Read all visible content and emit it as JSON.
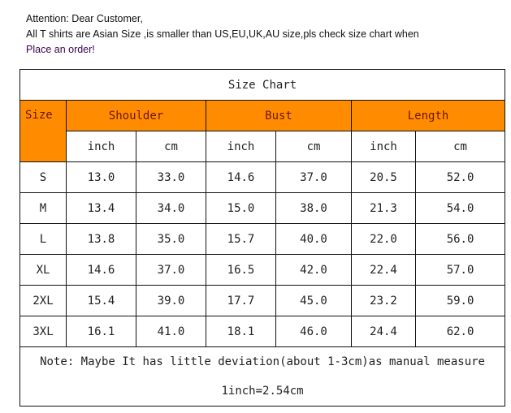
{
  "notice": {
    "line1": "Attention: Dear Customer,",
    "line2": "All T shirts are Asian Size ,is smaller than US,EU,UK,AU size,pls check size chart when",
    "line3": "Place an order!"
  },
  "table": {
    "title": "Size Chart",
    "size_header": "Size",
    "groups": [
      "Shoulder",
      "Bust",
      "Length"
    ],
    "units": [
      "inch",
      "cm",
      "inch",
      "cm",
      "inch",
      "cm"
    ],
    "rows": [
      [
        "S",
        "13.0",
        "33.0",
        "14.6",
        "37.0",
        "20.5",
        "52.0"
      ],
      [
        "M",
        "13.4",
        "34.0",
        "15.0",
        "38.0",
        "21.3",
        "54.0"
      ],
      [
        "L",
        "13.8",
        "35.0",
        "15.7",
        "40.0",
        "22.0",
        "56.0"
      ],
      [
        "XL",
        "14.6",
        "37.0",
        "16.5",
        "42.0",
        "22.4",
        "57.0"
      ],
      [
        "2XL",
        "15.4",
        "39.0",
        "17.7",
        "45.0",
        "23.2",
        "59.0"
      ],
      [
        "3XL",
        "16.1",
        "41.0",
        "18.1",
        "46.0",
        "24.4",
        "62.0"
      ]
    ],
    "note": "Note: Maybe It has little deviation(about 1-3cm)as manual measure",
    "conversion": "1inch=2.54cm"
  },
  "colors": {
    "header_bg": "#ff8c00",
    "header_text": "#6b1500"
  }
}
